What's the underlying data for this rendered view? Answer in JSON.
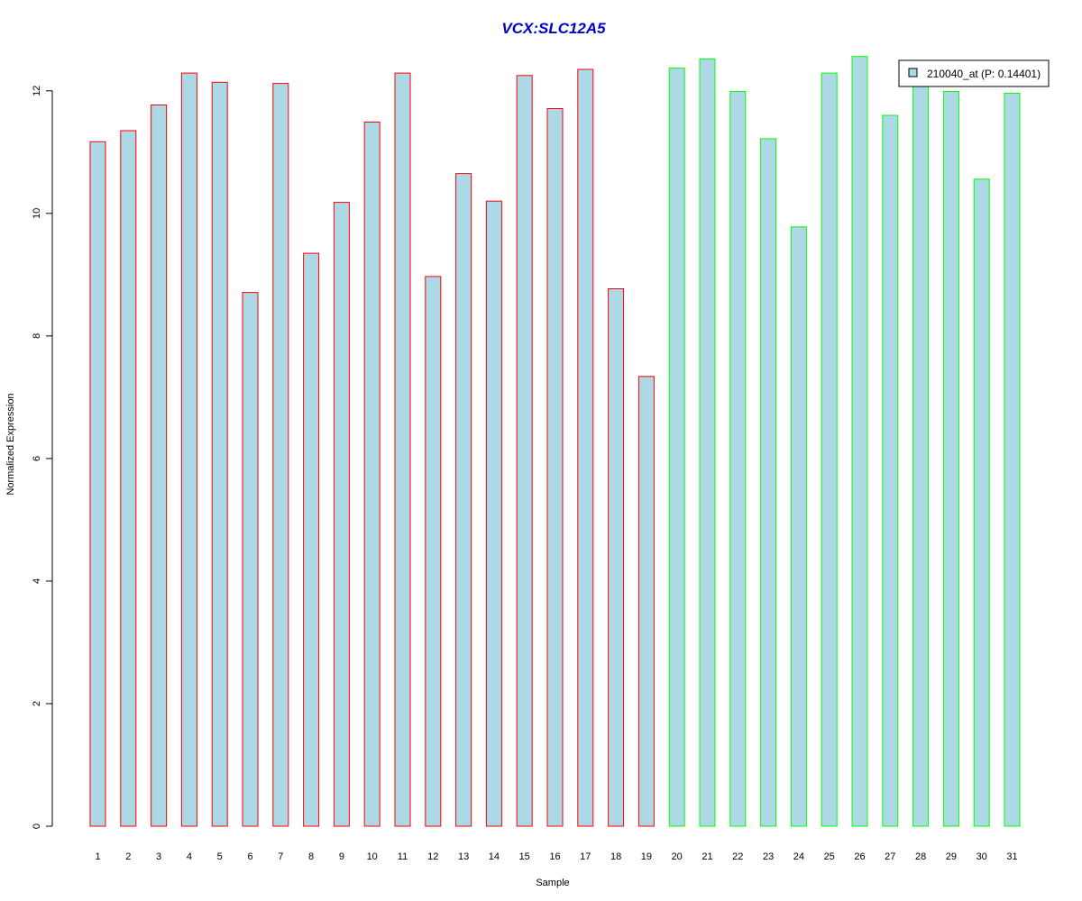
{
  "chart_data": {
    "type": "bar",
    "title": "VCX:SLC12A5",
    "xlabel": "Sample",
    "ylabel": "Normalized Expression",
    "categories": [
      "1",
      "2",
      "3",
      "4",
      "5",
      "6",
      "7",
      "8",
      "9",
      "10",
      "11",
      "12",
      "13",
      "14",
      "15",
      "16",
      "17",
      "18",
      "19",
      "20",
      "21",
      "22",
      "23",
      "24",
      "25",
      "26",
      "27",
      "28",
      "29",
      "30",
      "31"
    ],
    "series": [
      {
        "name": "210040_at (P: 0.14401)",
        "values": [
          11.17,
          11.35,
          11.77,
          12.29,
          12.14,
          8.71,
          12.12,
          9.35,
          10.18,
          11.49,
          12.29,
          8.97,
          10.65,
          10.2,
          12.25,
          11.71,
          12.35,
          8.77,
          7.34,
          12.37,
          12.52,
          11.99,
          11.22,
          9.78,
          12.29,
          12.56,
          11.6,
          12.1,
          11.99,
          10.56,
          11.96
        ]
      }
    ],
    "group_outline": [
      "red",
      "red",
      "red",
      "red",
      "red",
      "red",
      "red",
      "red",
      "red",
      "red",
      "red",
      "red",
      "red",
      "red",
      "red",
      "red",
      "red",
      "red",
      "red",
      "green",
      "green",
      "green",
      "green",
      "green",
      "green",
      "green",
      "green",
      "green",
      "green",
      "green",
      "green"
    ],
    "yticks": [
      0,
      2,
      4,
      6,
      8,
      10,
      12
    ],
    "ylim": [
      0,
      12.6
    ],
    "grid": false,
    "legend_placement": "top-right",
    "colors": {
      "bar_fill": "#add8e6",
      "outline_group1": "#ff0000",
      "outline_group2": "#00ff00",
      "title": "#0000cd"
    }
  }
}
